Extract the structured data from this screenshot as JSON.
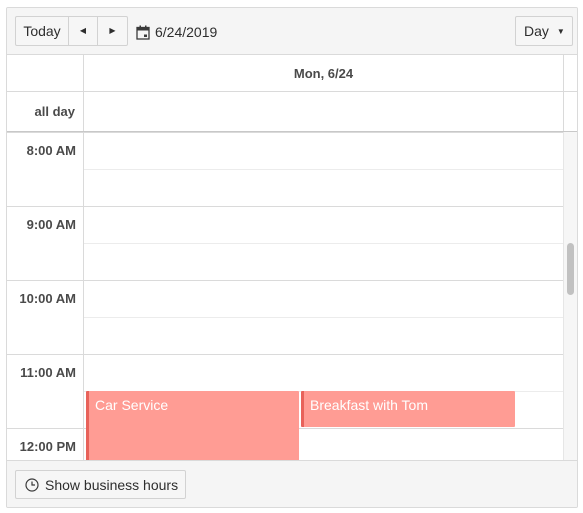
{
  "toolbar": {
    "today_label": "Today",
    "prev_icon": "triangle-left-icon",
    "next_icon": "triangle-right-icon",
    "date_value": "6/24/2019",
    "calendar_icon": "calendar-icon",
    "view_label": "Day",
    "view_caret_icon": "caret-down-icon"
  },
  "header": {
    "day_label": "Mon, 6/24",
    "allday_label": "all day"
  },
  "times": [
    "8:00 AM",
    "9:00 AM",
    "10:00 AM",
    "11:00 AM",
    "12:00 PM"
  ],
  "events": [
    {
      "title": "Car Service",
      "color": "#ff9c94"
    },
    {
      "title": "Breakfast with Tom",
      "color": "#ff9c94"
    }
  ],
  "footer": {
    "business_hours_label": "Show business hours",
    "clock_icon": "clock-icon"
  },
  "colors": {
    "event_bg": "#ff9c94",
    "event_border": "#e8625a",
    "toolbar_bg": "#f5f5f5",
    "border": "#dadada"
  }
}
